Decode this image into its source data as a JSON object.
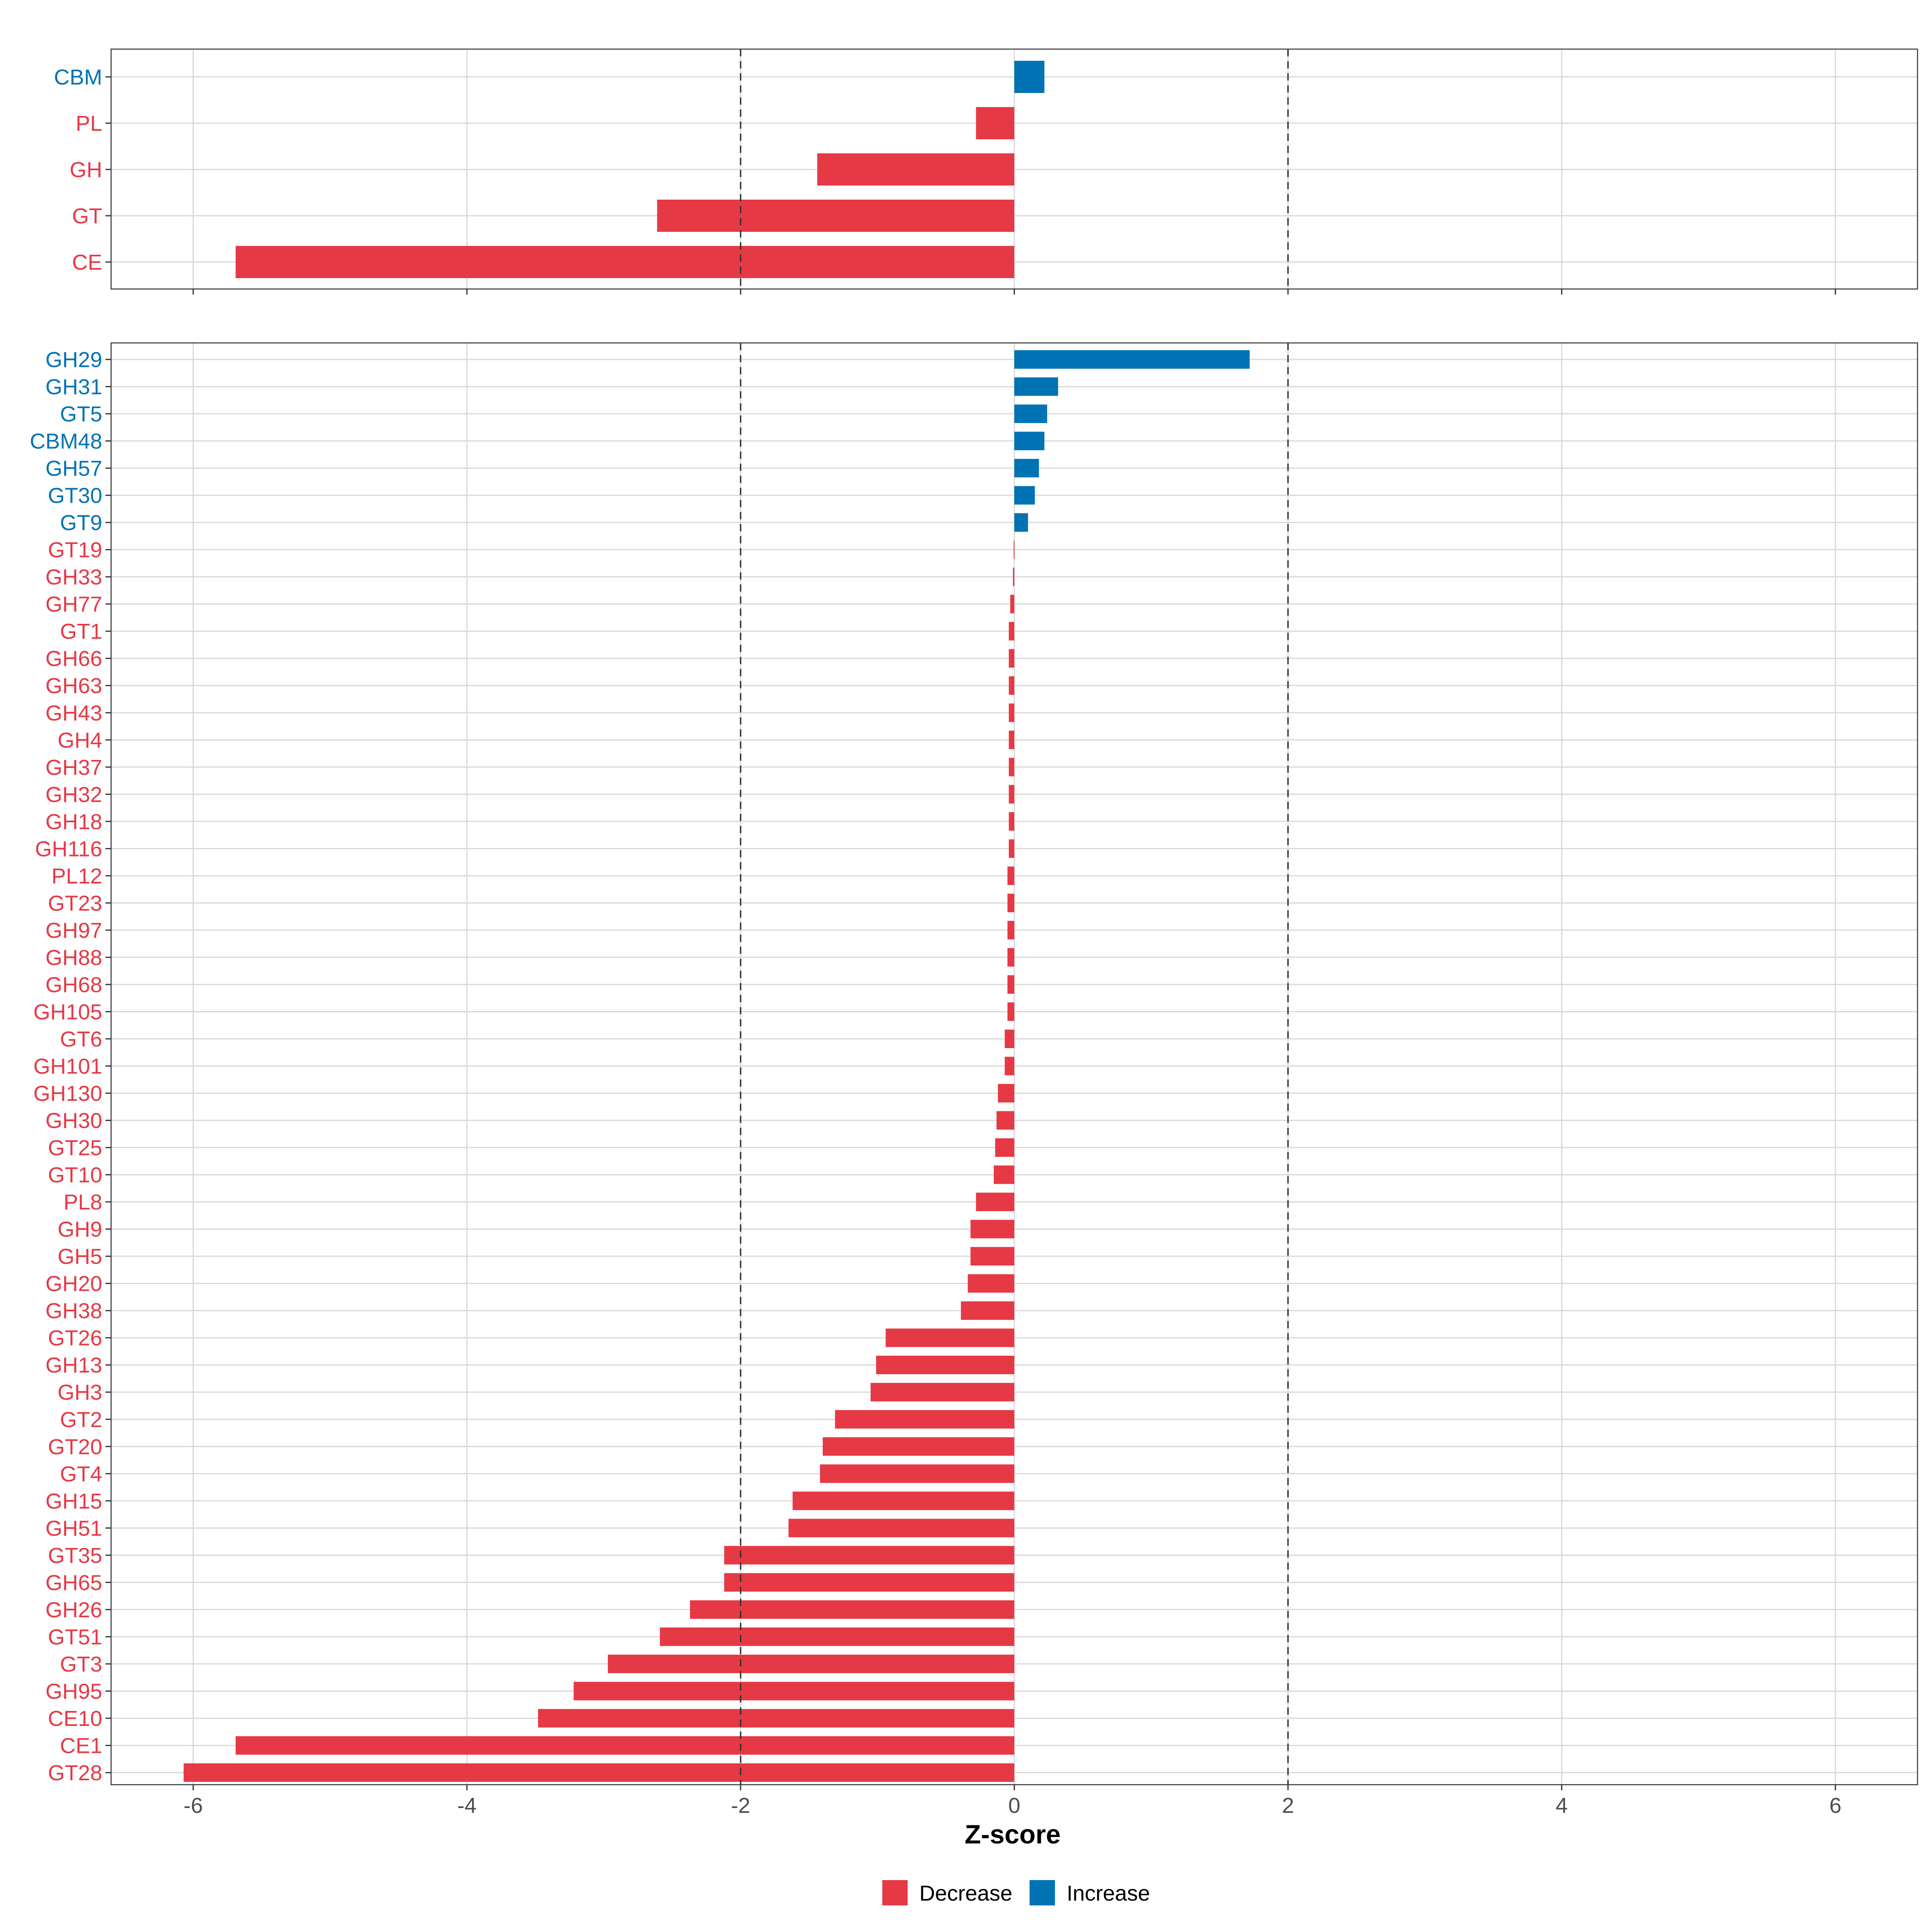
{
  "colors": {
    "decrease": "#e63946",
    "increase": "#0073b5"
  },
  "chart_data": {
    "type": "bar",
    "orientation": "horizontal",
    "xlabel": "Z-score",
    "xlim": [
      -6.6,
      6.6
    ],
    "xticks": [
      -6,
      -4,
      -2,
      0,
      2,
      4,
      6
    ],
    "reference_lines": [
      -2,
      2
    ],
    "legend": {
      "position": "bottom",
      "items": [
        {
          "label": "Decrease",
          "color": "#e63946"
        },
        {
          "label": "Increase",
          "color": "#0073b5"
        }
      ]
    },
    "panels": [
      {
        "name": "class",
        "categories": [
          "CBM",
          "PL",
          "GH",
          "GT",
          "CE"
        ],
        "values": [
          0.22,
          -0.28,
          -1.44,
          -2.61,
          -5.69
        ]
      },
      {
        "name": "family",
        "categories": [
          "GH29",
          "GH31",
          "GT5",
          "CBM48",
          "GH57",
          "GT30",
          "GT9",
          "GT19",
          "GH33",
          "GH77",
          "GT1",
          "GH66",
          "GH63",
          "GH43",
          "GH4",
          "GH37",
          "GH32",
          "GH18",
          "GH116",
          "PL12",
          "GT23",
          "GH97",
          "GH88",
          "GH68",
          "GH105",
          "GT6",
          "GH101",
          "GH130",
          "GH30",
          "GT25",
          "GT10",
          "PL8",
          "GH9",
          "GH5",
          "GH20",
          "GH38",
          "GT26",
          "GH13",
          "GH3",
          "GT2",
          "GT20",
          "GT4",
          "GH15",
          "GH51",
          "GT35",
          "GH65",
          "GH26",
          "GT51",
          "GT3",
          "GH95",
          "CE10",
          "CE1",
          "GT28"
        ],
        "values": [
          1.72,
          0.32,
          0.24,
          0.22,
          0.18,
          0.15,
          0.1,
          -0.005,
          -0.01,
          -0.03,
          -0.04,
          -0.04,
          -0.04,
          -0.04,
          -0.04,
          -0.04,
          -0.04,
          -0.04,
          -0.04,
          -0.05,
          -0.05,
          -0.05,
          -0.05,
          -0.05,
          -0.05,
          -0.07,
          -0.07,
          -0.12,
          -0.13,
          -0.14,
          -0.15,
          -0.28,
          -0.32,
          -0.32,
          -0.34,
          -0.39,
          -0.94,
          -1.01,
          -1.05,
          -1.31,
          -1.4,
          -1.42,
          -1.62,
          -1.65,
          -2.12,
          -2.12,
          -2.37,
          -2.59,
          -2.97,
          -3.22,
          -3.48,
          -5.69,
          -6.07
        ]
      }
    ]
  }
}
